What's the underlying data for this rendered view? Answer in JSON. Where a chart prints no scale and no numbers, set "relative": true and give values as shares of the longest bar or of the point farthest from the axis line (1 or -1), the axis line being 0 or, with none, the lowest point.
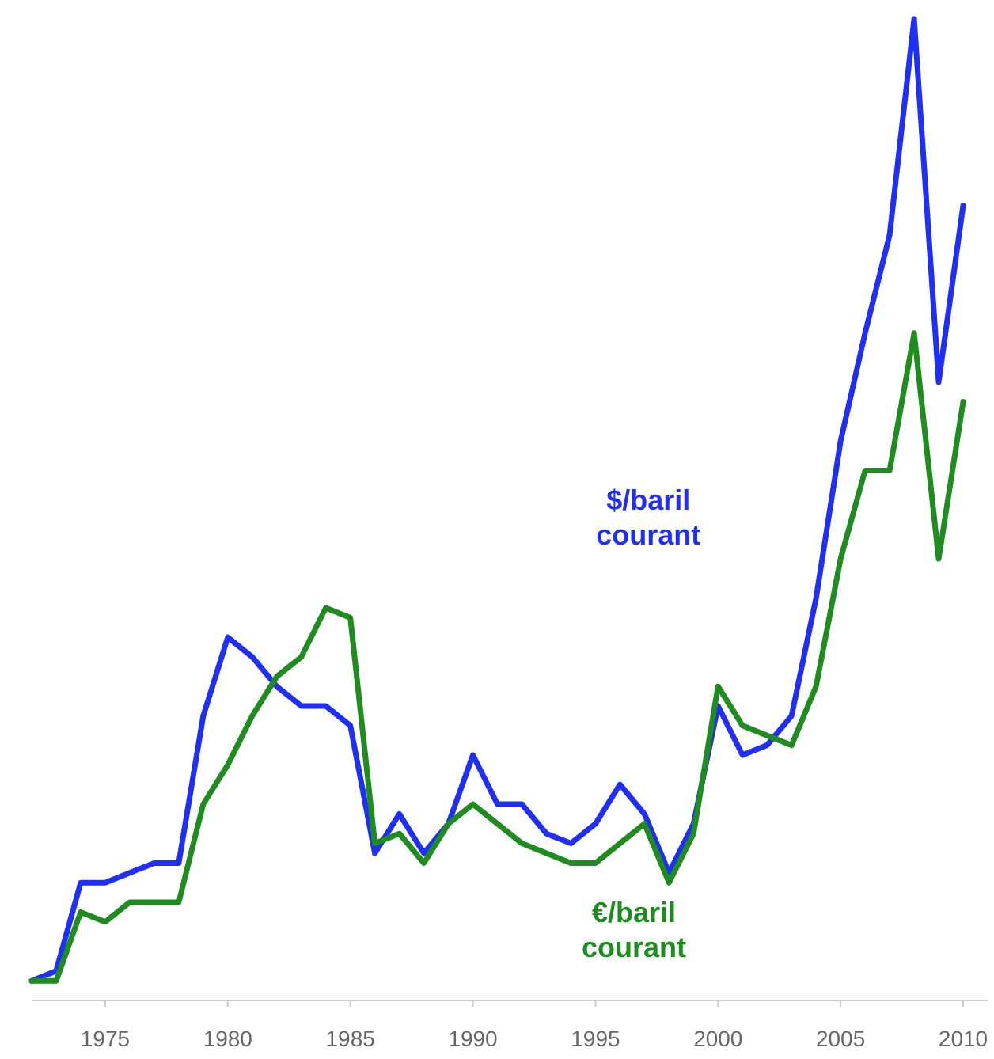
{
  "chart_data": {
    "type": "line",
    "relative": true,
    "x": [
      1972,
      1973,
      1974,
      1975,
      1976,
      1977,
      1978,
      1979,
      1980,
      1981,
      1982,
      1983,
      1984,
      1985,
      1986,
      1987,
      1988,
      1989,
      1990,
      1991,
      1992,
      1993,
      1994,
      1995,
      1996,
      1997,
      1998,
      1999,
      2000,
      2001,
      2002,
      2003,
      2004,
      2005,
      2006,
      2007,
      2008,
      2009,
      2010
    ],
    "xlim": [
      1972,
      2011
    ],
    "xticks": [
      1975,
      1980,
      1985,
      1990,
      1995,
      2000,
      2005,
      2010
    ],
    "grid": false,
    "marker": "none",
    "line_style": "solid",
    "series": [
      {
        "name": "$/baril courant",
        "color": "#1f2ff5",
        "values": [
          0.02,
          0.03,
          0.12,
          0.12,
          0.13,
          0.14,
          0.14,
          0.29,
          0.37,
          0.35,
          0.32,
          0.3,
          0.3,
          0.28,
          0.15,
          0.19,
          0.15,
          0.18,
          0.25,
          0.2,
          0.2,
          0.17,
          0.16,
          0.18,
          0.22,
          0.19,
          0.13,
          0.18,
          0.3,
          0.25,
          0.26,
          0.29,
          0.41,
          0.57,
          0.68,
          0.78,
          1,
          0.63,
          0.81
        ]
      },
      {
        "name": "€/baril courant",
        "color": "#1e8c1e",
        "values": [
          0.02,
          0.02,
          0.09,
          0.08,
          0.1,
          0.1,
          0.1,
          0.2,
          0.24,
          0.29,
          0.33,
          0.35,
          0.4,
          0.39,
          0.16,
          0.17,
          0.14,
          0.18,
          0.2,
          0.18,
          0.16,
          0.15,
          0.14,
          0.14,
          0.16,
          0.18,
          0.12,
          0.17,
          0.32,
          0.28,
          0.27,
          0.26,
          0.32,
          0.45,
          0.54,
          0.54,
          0.68,
          0.45,
          0.61
        ]
      }
    ]
  }
}
